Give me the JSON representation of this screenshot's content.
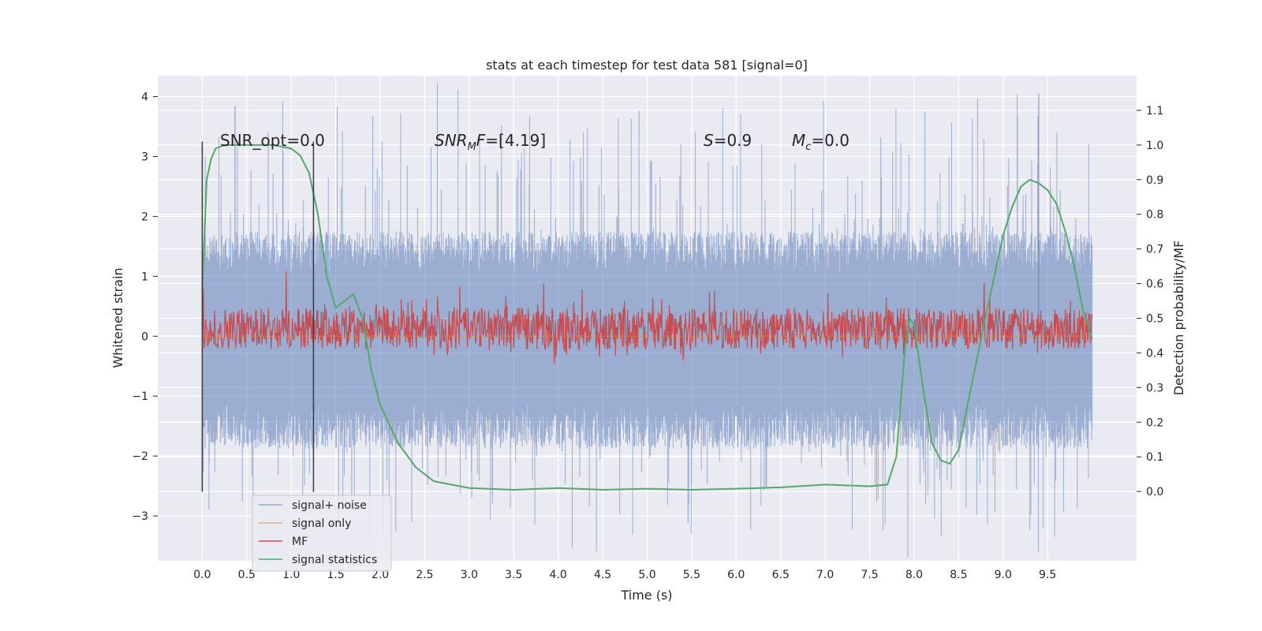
{
  "chart_data": {
    "type": "line",
    "title": "stats at each timestep for test data 581 [signal=0]",
    "xlabel": "Time (s)",
    "ylabel": "Whitened strain",
    "y2label": "Detection probability/MF",
    "xlim": [
      -0.5,
      10.5
    ],
    "ylim": [
      -3.75,
      4.35
    ],
    "y2lim": [
      -0.2,
      1.2
    ],
    "x_ticks": [
      "0.0",
      "0.5",
      "1.0",
      "1.5",
      "2.0",
      "2.5",
      "3.0",
      "3.5",
      "4.0",
      "4.5",
      "5.0",
      "5.5",
      "6.0",
      "6.5",
      "7.0",
      "7.5",
      "8.0",
      "8.5",
      "9.0",
      "9.5"
    ],
    "y_ticks": [
      "−3",
      "−2",
      "−1",
      "0",
      "1",
      "2",
      "3",
      "4"
    ],
    "y2_ticks": [
      "0.0",
      "0.1",
      "0.2",
      "0.3",
      "0.4",
      "0.5",
      "0.6",
      "0.7",
      "0.8",
      "0.9",
      "1.0",
      "1.1"
    ],
    "grid": true,
    "legend_position": "lower-left",
    "annotations": [
      {
        "text": "SNR_opt=0.0",
        "x": 0.2,
        "y": 3.2
      },
      {
        "text": "SNR_M F=[4.19]",
        "x": 2.6,
        "y": 3.2
      },
      {
        "text": "S=0.9",
        "x": 5.6,
        "y": 3.2
      },
      {
        "text": "M_c=0.0",
        "x": 6.6,
        "y": 3.2
      }
    ],
    "vertical_lines": [
      {
        "x": 0.0,
        "ymin": -2.6,
        "ymax": 3.25
      },
      {
        "x": 1.25,
        "ymin": -2.6,
        "ymax": 3.25
      }
    ],
    "series": [
      {
        "name": "signal+ noise",
        "color": "#4c72b0",
        "axis": "left",
        "kind": "noise",
        "x_range": [
          0,
          10
        ],
        "upper_typical": 1.4,
        "lower_typical": -1.5,
        "upper_max": 4.05,
        "lower_min": -3.4
      },
      {
        "name": "signal only",
        "color": "#dd8452",
        "axis": "left",
        "kind": "flat",
        "x_range": [
          0,
          10
        ],
        "value": 0
      },
      {
        "name": "MF",
        "color": "#c44e52",
        "axis": "right",
        "kind": "noise",
        "x_range": [
          0,
          10
        ],
        "center": 0.47,
        "spread": 0.04,
        "peak": 0.6
      },
      {
        "name": "signal statistics",
        "color": "#55a868",
        "axis": "right",
        "x": [
          0.0,
          0.05,
          0.1,
          0.15,
          0.25,
          0.5,
          0.8,
          1.0,
          1.1,
          1.2,
          1.3,
          1.4,
          1.5,
          1.6,
          1.7,
          1.8,
          1.9,
          2.0,
          2.2,
          2.4,
          2.6,
          2.8,
          3.0,
          3.5,
          4.0,
          4.5,
          5.0,
          5.5,
          6.0,
          6.5,
          7.0,
          7.5,
          7.7,
          7.8,
          7.9,
          7.95,
          8.0,
          8.1,
          8.2,
          8.3,
          8.4,
          8.5,
          8.6,
          8.8,
          9.0,
          9.1,
          9.2,
          9.3,
          9.4,
          9.5,
          9.6,
          9.7,
          9.8,
          9.9,
          10.0
        ],
        "y": [
          0.58,
          0.9,
          0.96,
          0.99,
          1.0,
          1.0,
          1.0,
          0.99,
          0.97,
          0.92,
          0.8,
          0.62,
          0.53,
          0.55,
          0.57,
          0.5,
          0.35,
          0.25,
          0.14,
          0.07,
          0.03,
          0.02,
          0.01,
          0.005,
          0.01,
          0.005,
          0.008,
          0.005,
          0.008,
          0.012,
          0.02,
          0.015,
          0.02,
          0.1,
          0.42,
          0.5,
          0.48,
          0.3,
          0.14,
          0.09,
          0.08,
          0.12,
          0.25,
          0.5,
          0.74,
          0.82,
          0.88,
          0.9,
          0.89,
          0.87,
          0.83,
          0.75,
          0.65,
          0.52,
          0.44
        ]
      }
    ]
  }
}
